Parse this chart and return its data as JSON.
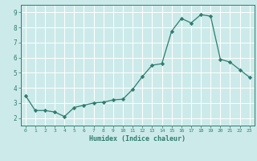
{
  "x": [
    0,
    1,
    2,
    3,
    4,
    5,
    6,
    7,
    8,
    9,
    10,
    11,
    12,
    13,
    14,
    15,
    16,
    17,
    18,
    19,
    20,
    21,
    22,
    23
  ],
  "y": [
    3.5,
    2.5,
    2.5,
    2.4,
    2.1,
    2.7,
    2.85,
    3.0,
    3.05,
    3.2,
    3.25,
    3.9,
    4.75,
    5.5,
    5.6,
    7.75,
    8.6,
    8.3,
    8.85,
    8.75,
    5.9,
    5.7,
    5.2,
    4.7
  ],
  "xlabel": "Humidex (Indice chaleur)",
  "ylim": [
    1.5,
    9.5
  ],
  "xlim": [
    -0.5,
    23.5
  ],
  "yticks": [
    2,
    3,
    4,
    5,
    6,
    7,
    8,
    9
  ],
  "xticks": [
    0,
    1,
    2,
    3,
    4,
    5,
    6,
    7,
    8,
    9,
    10,
    11,
    12,
    13,
    14,
    15,
    16,
    17,
    18,
    19,
    20,
    21,
    22,
    23
  ],
  "line_color": "#2e7d6e",
  "bg_color": "#cdeaea",
  "grid_color": "#ffffff",
  "tick_color": "#2e7d6e",
  "label_color": "#2e7d6e"
}
